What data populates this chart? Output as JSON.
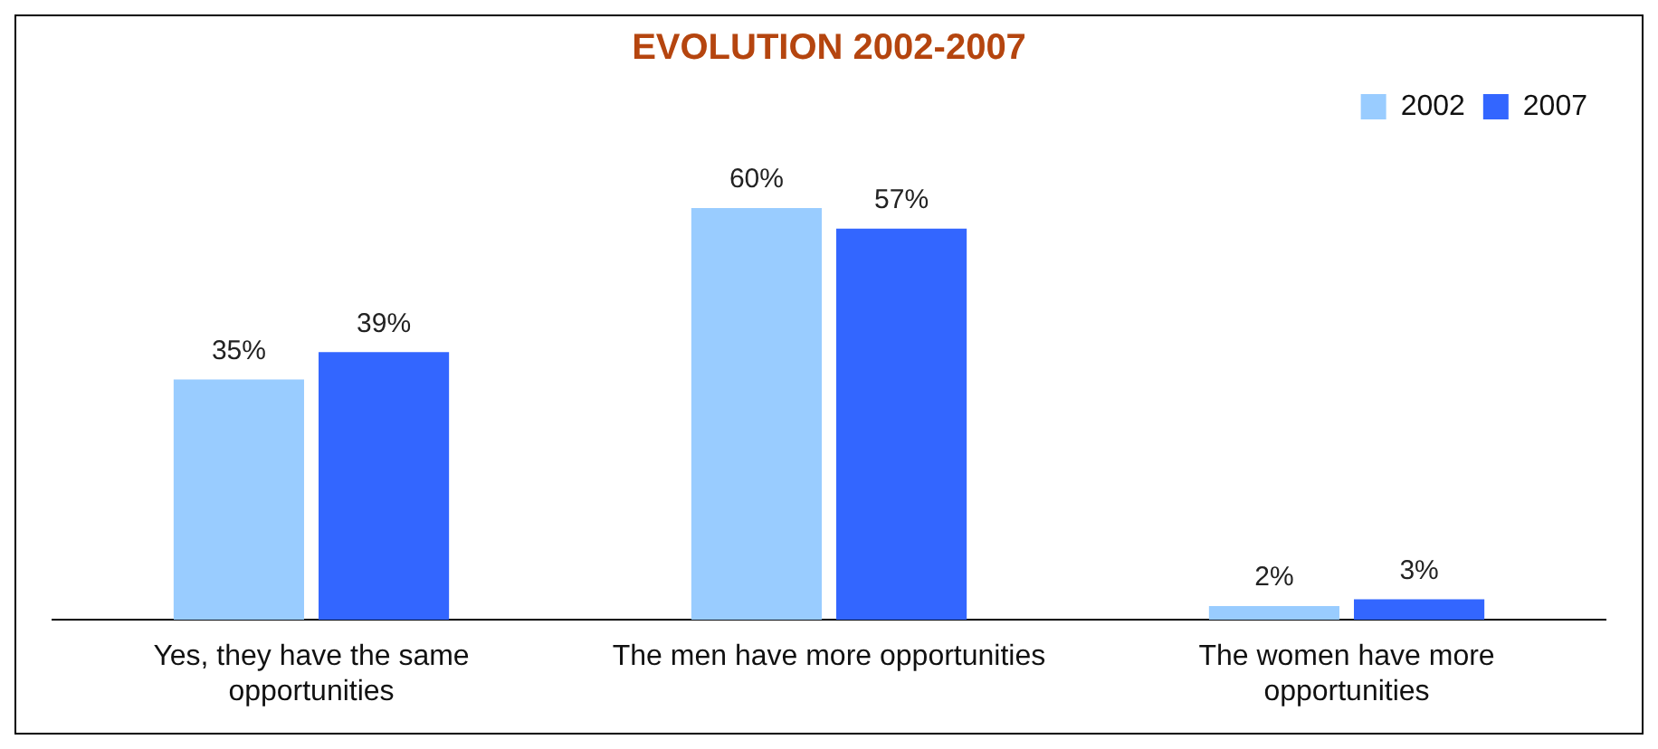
{
  "chart_data": {
    "type": "bar",
    "title": "EVOLUTION 2002-2007",
    "categories": [
      "Yes, they have the same opportunities",
      "The men have more opportunities",
      "The women have more opportunities"
    ],
    "series": [
      {
        "name": "2002",
        "color": "#99ccff",
        "values": [
          35,
          60,
          2
        ],
        "value_labels": [
          "35%",
          "60%",
          "2%"
        ]
      },
      {
        "name": "2007",
        "color": "#3366ff",
        "values": [
          39,
          57,
          3
        ],
        "value_labels": [
          "39%",
          "57%",
          "3%"
        ]
      }
    ],
    "legend": "top right",
    "grid": false
  }
}
